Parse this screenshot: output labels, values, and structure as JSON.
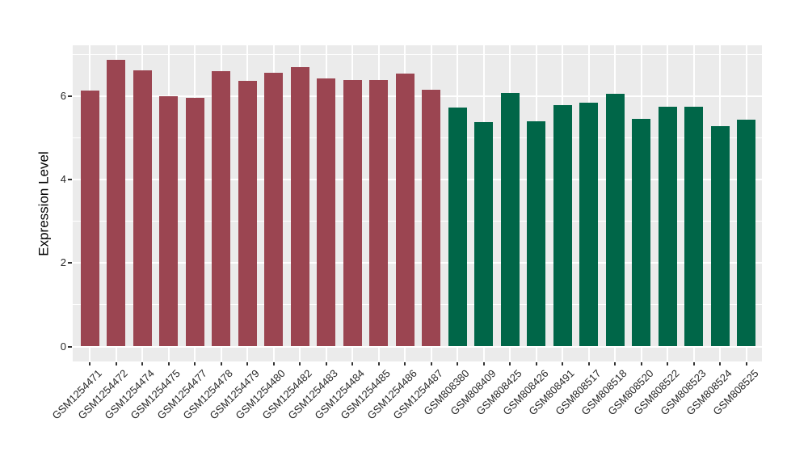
{
  "figure": {
    "background": "#FFFFFF",
    "panel_background": "#EBEBEB",
    "gridline_color": "#FFFFFF",
    "tick_color": "#333333",
    "text_color": "#262626"
  },
  "chart_data": {
    "type": "bar",
    "title": "",
    "xlabel": "",
    "ylabel": "Expression Level",
    "ylim": [
      0,
      7.23
    ],
    "yticks": [
      0,
      2,
      4,
      6
    ],
    "yticks_minor": [
      1,
      3,
      5,
      7
    ],
    "grid": "on",
    "legend": "none",
    "colors": {
      "red": "#9B4551",
      "green": "#006648"
    },
    "categories": [
      "GSM1254471",
      "GSM1254472",
      "GSM1254474",
      "GSM1254475",
      "GSM1254477",
      "GSM1254478",
      "GSM1254479",
      "GSM1254480",
      "GSM1254482",
      "GSM1254483",
      "GSM1254484",
      "GSM1254485",
      "GSM1254486",
      "GSM1254487",
      "GSM808380",
      "GSM808409",
      "GSM808425",
      "GSM808426",
      "GSM808491",
      "GSM808517",
      "GSM808518",
      "GSM808520",
      "GSM808522",
      "GSM808523",
      "GSM808524",
      "GSM808525"
    ],
    "values": [
      6.13,
      6.88,
      6.62,
      6.0,
      5.97,
      6.6,
      6.38,
      6.57,
      6.71,
      6.44,
      6.39,
      6.39,
      6.54,
      6.15,
      5.73,
      5.39,
      6.09,
      5.41,
      5.8,
      5.84,
      6.07,
      5.47,
      5.75,
      5.75,
      5.28,
      5.45
    ],
    "groups": [
      "red",
      "red",
      "red",
      "red",
      "red",
      "red",
      "red",
      "red",
      "red",
      "red",
      "red",
      "red",
      "red",
      "red",
      "green",
      "green",
      "green",
      "green",
      "green",
      "green",
      "green",
      "green",
      "green",
      "green",
      "green",
      "green"
    ]
  }
}
